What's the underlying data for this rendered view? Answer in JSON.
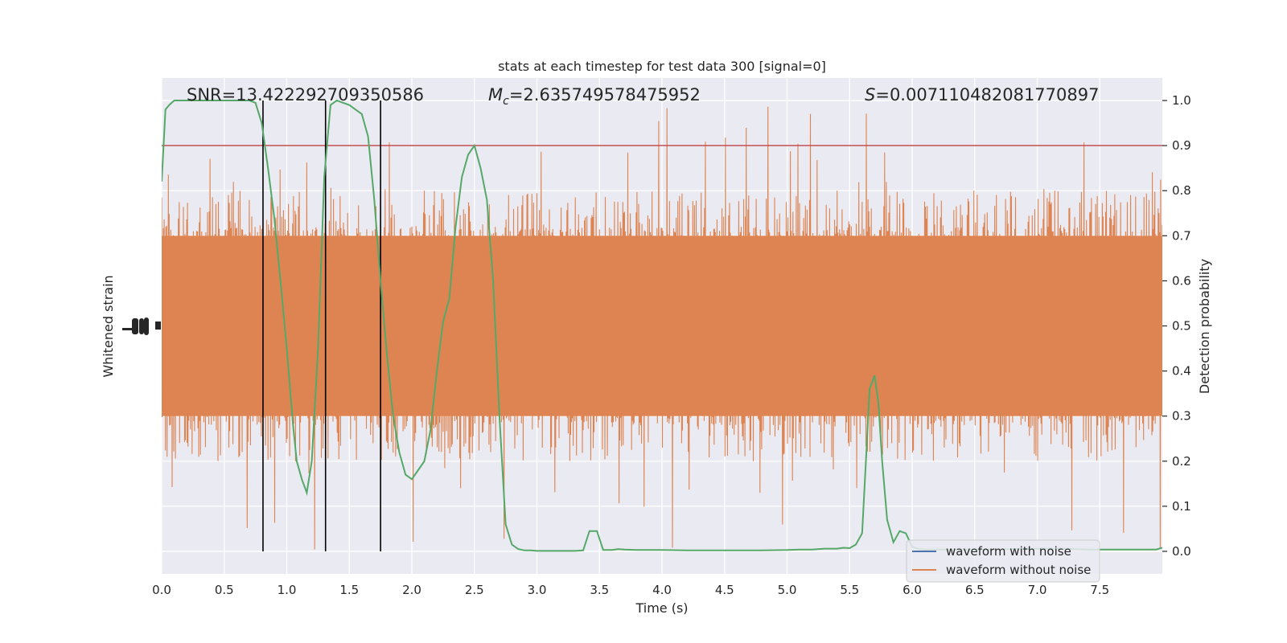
{
  "chart_data": {
    "type": "line",
    "title": "stats at each timestep for test data 300 [signal=0]",
    "xlabel": "Time (s)",
    "ylabel_left": "Whitened strain",
    "ylabel_right": "Detection probability",
    "xlim": [
      0.0,
      8.0
    ],
    "ylim_right": [
      -0.05,
      1.05
    ],
    "x_ticks": [
      "0.0",
      "0.5",
      "1.0",
      "1.5",
      "2.0",
      "2.5",
      "3.0",
      "3.5",
      "4.0",
      "4.5",
      "5.0",
      "5.5",
      "6.0",
      "6.5",
      "7.0",
      "7.5"
    ],
    "y_ticks_right": [
      "0.0",
      "0.1",
      "0.2",
      "0.3",
      "0.4",
      "0.5",
      "0.6",
      "0.7",
      "0.8",
      "0.9",
      "1.0"
    ],
    "grid": true,
    "legend_position": "lower-right",
    "legend": [
      {
        "label": "waveform with noise",
        "color": "#4c72b0"
      },
      {
        "label": "waveform without noise",
        "color": "#dd8452"
      }
    ],
    "annotations": {
      "snr": "SNR=13.422292709350586",
      "mc_symbol": "M",
      "mc_subscript": "c",
      "mc_value": "=2.635749578475952",
      "s_symbol": "S",
      "s_value": "=0.007110482081770897"
    },
    "threshold": {
      "y": 0.9,
      "color": "#c44e52"
    },
    "vertical_markers": [
      0.81,
      1.31,
      1.75
    ],
    "noise_series": {
      "name": "waveform without noise",
      "color": "#dd8452",
      "core_band": [
        0.3,
        0.7
      ],
      "typical_envelope": [
        0.22,
        0.8
      ],
      "spike_range": [
        0.0,
        1.0
      ]
    },
    "probability_series": {
      "color": "#55a868",
      "x": [
        0.0,
        0.03,
        0.06,
        0.1,
        0.15,
        0.2,
        0.3,
        0.4,
        0.5,
        0.6,
        0.7,
        0.75,
        0.8,
        0.85,
        0.9,
        0.95,
        1.0,
        1.05,
        1.08,
        1.12,
        1.16,
        1.2,
        1.25,
        1.3,
        1.35,
        1.4,
        1.45,
        1.5,
        1.55,
        1.6,
        1.65,
        1.7,
        1.75,
        1.8,
        1.85,
        1.9,
        1.95,
        2.0,
        2.05,
        2.1,
        2.15,
        2.2,
        2.25,
        2.3,
        2.35,
        2.4,
        2.45,
        2.5,
        2.55,
        2.6,
        2.65,
        2.7,
        2.75,
        2.8,
        2.85,
        2.9,
        2.95,
        3.0,
        3.1,
        3.2,
        3.3,
        3.37,
        3.42,
        3.48,
        3.53,
        3.6,
        3.65,
        3.7,
        3.8,
        3.9,
        4.0,
        4.2,
        4.4,
        4.6,
        4.8,
        5.0,
        5.1,
        5.2,
        5.3,
        5.4,
        5.45,
        5.5,
        5.55,
        5.6,
        5.63,
        5.66,
        5.7,
        5.73,
        5.76,
        5.8,
        5.85,
        5.9,
        5.95,
        6.0,
        6.05,
        6.1,
        6.2,
        6.4,
        6.6,
        6.8,
        7.0,
        7.2,
        7.4,
        7.6,
        7.8,
        7.95,
        8.0
      ],
      "y": [
        0.82,
        0.98,
        0.99,
        1.0,
        1.0,
        1.0,
        1.0,
        1.0,
        1.0,
        1.0,
        1.0,
        0.995,
        0.95,
        0.85,
        0.74,
        0.6,
        0.45,
        0.28,
        0.2,
        0.16,
        0.13,
        0.2,
        0.45,
        0.83,
        0.99,
        1.0,
        0.995,
        0.99,
        0.98,
        0.97,
        0.92,
        0.78,
        0.6,
        0.44,
        0.3,
        0.22,
        0.17,
        0.16,
        0.18,
        0.2,
        0.27,
        0.4,
        0.51,
        0.56,
        0.72,
        0.83,
        0.88,
        0.9,
        0.85,
        0.78,
        0.6,
        0.3,
        0.06,
        0.015,
        0.005,
        0.002,
        0.002,
        0.001,
        0.001,
        0.001,
        0.001,
        0.002,
        0.045,
        0.045,
        0.003,
        0.003,
        0.005,
        0.004,
        0.003,
        0.003,
        0.003,
        0.002,
        0.002,
        0.002,
        0.002,
        0.003,
        0.004,
        0.004,
        0.006,
        0.006,
        0.008,
        0.007,
        0.015,
        0.04,
        0.2,
        0.36,
        0.39,
        0.33,
        0.2,
        0.07,
        0.02,
        0.045,
        0.04,
        0.01,
        0.005,
        0.004,
        0.004,
        0.004,
        0.004,
        0.005,
        0.006,
        0.006,
        0.004,
        0.004,
        0.004,
        0.004,
        0.008
      ]
    },
    "with_noise_series": {
      "name": "waveform with noise",
      "color": "#4c72b0",
      "values": []
    }
  }
}
